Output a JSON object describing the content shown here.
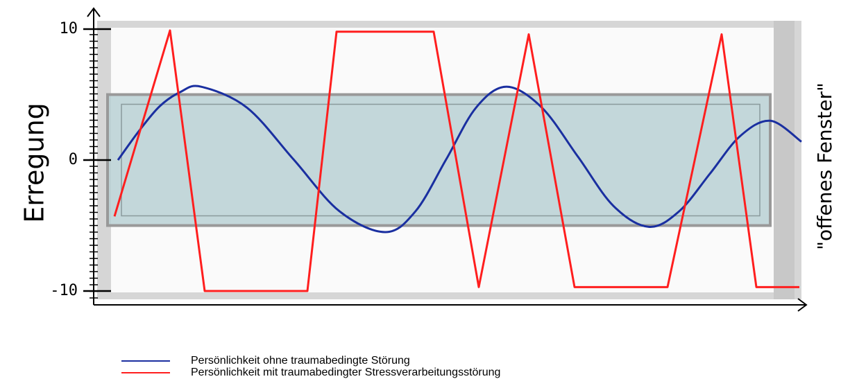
{
  "chart_data": {
    "type": "line",
    "y_label": "Erregung",
    "side_label": "\"offenes Fenster\"",
    "ylim": [
      -10,
      10
    ],
    "yticks": [
      -10,
      0,
      10
    ],
    "xlim": [
      0,
      100
    ],
    "window": [
      -5,
      5
    ],
    "series": [
      {
        "name": "Persönlichkeit ohne traumabedingte Störung",
        "color": "#1a2fa0",
        "x": [
          1,
          4,
          7,
          10,
          13,
          19.6,
          26.3,
          32.9,
          39.5,
          43.9,
          48.3,
          52.6,
          57,
          62.1,
          67.3,
          72.4,
          77.5,
          81.9,
          86.3,
          90.6,
          95,
          99.5
        ],
        "values": [
          0,
          2.2,
          4.1,
          5.2,
          5.6,
          4.0,
          0.05,
          -3.9,
          -5.5,
          -3.9,
          0.05,
          4.0,
          5.6,
          4.0,
          0.25,
          -3.5,
          -5.1,
          -3.9,
          -1.05,
          1.8,
          3.0,
          1.4
        ]
      },
      {
        "name": "Persönlichkeit mit traumabedingter Stressverarbeitungsstörung",
        "color": "#ff1e1e",
        "x": [
          0.5,
          8.5,
          13.5,
          28.3,
          32.5,
          46.5,
          53,
          60.2,
          66.8,
          80.2,
          88,
          93,
          99.2
        ],
        "values": [
          -4.3,
          9.9,
          -10,
          -10,
          9.8,
          9.8,
          -9.7,
          9.6,
          -9.7,
          -9.7,
          9.6,
          -9.7,
          -9.7
        ]
      }
    ]
  }
}
